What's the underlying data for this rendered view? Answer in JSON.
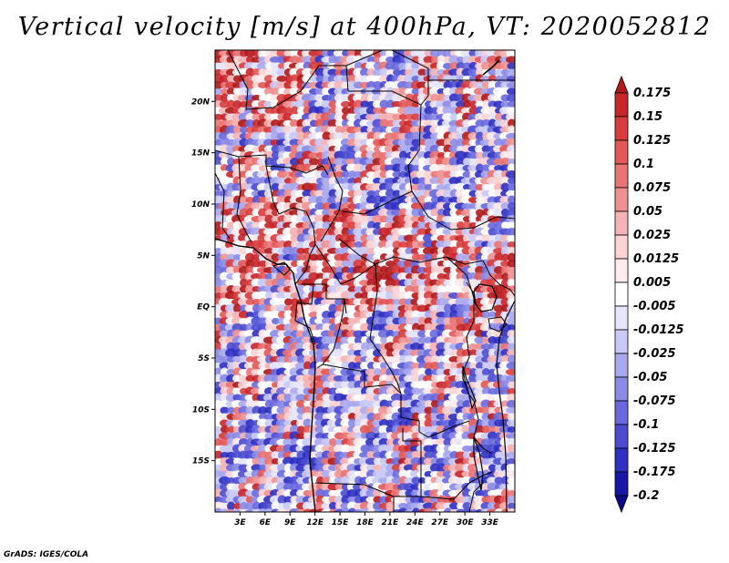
{
  "title": "Vertical velocity [m/s] at 400hPa, VT: 2020052812",
  "credit": "GrADS: IGES/COLA",
  "map": {
    "lon_range": [
      0,
      36
    ],
    "lat_range": [
      -20,
      25
    ],
    "lat_ticks": [
      {
        "lat": 20,
        "label": "20N"
      },
      {
        "lat": 15,
        "label": "15N"
      },
      {
        "lat": 10,
        "label": "10N"
      },
      {
        "lat": 5,
        "label": "5N"
      },
      {
        "lat": 0,
        "label": "EQ"
      },
      {
        "lat": -5,
        "label": "5S"
      },
      {
        "lat": -10,
        "label": "10S"
      },
      {
        "lat": -15,
        "label": "15S"
      }
    ],
    "lon_ticks": [
      {
        "lon": 3,
        "label": "3E"
      },
      {
        "lon": 6,
        "label": "6E"
      },
      {
        "lon": 9,
        "label": "9E"
      },
      {
        "lon": 12,
        "label": "12E"
      },
      {
        "lon": 15,
        "label": "15E"
      },
      {
        "lon": 18,
        "label": "18E"
      },
      {
        "lon": 21,
        "label": "21E"
      },
      {
        "lon": 24,
        "label": "24E"
      },
      {
        "lon": 27,
        "label": "27E"
      },
      {
        "lon": 30,
        "label": "30E"
      },
      {
        "lon": 33,
        "label": "33E"
      }
    ]
  },
  "colorbar": {
    "labels": [
      "0.175",
      "0.15",
      "0.125",
      "0.1",
      "0.075",
      "0.05",
      "0.025",
      "0.0125",
      "0.005",
      "-0.005",
      "-0.0125",
      "-0.025",
      "-0.05",
      "-0.075",
      "-0.1",
      "-0.125",
      "-0.175",
      "-0.2"
    ],
    "colors": [
      "#b01a1a",
      "#c8262a",
      "#d83c3c",
      "#e25757",
      "#ea7373",
      "#f09191",
      "#f6b3b3",
      "#fbd3d3",
      "#fdeaea",
      "#ffffff",
      "#e6e6fb",
      "#c9c9f6",
      "#a9a9ef",
      "#8a8ae7",
      "#6a6ade",
      "#4c4cd2",
      "#3030c2",
      "#1818a8",
      "#0a0a8a"
    ]
  }
}
